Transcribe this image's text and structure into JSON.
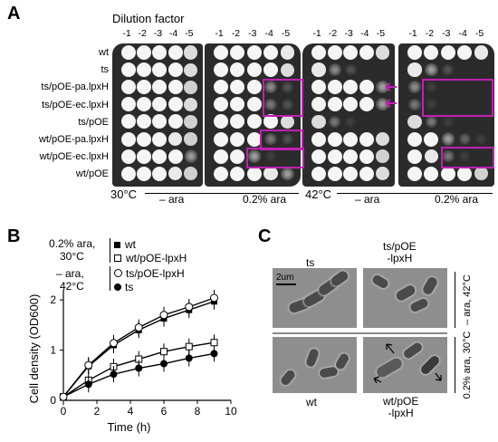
{
  "panels": {
    "a": "A",
    "b": "B",
    "c": "C"
  },
  "panelA": {
    "dilution_title": "Dilution factor",
    "dilutions": [
      "-1",
      "-2",
      "-3",
      "-4",
      "-5"
    ],
    "strains": [
      "wt",
      "ts",
      "ts/pOE-pa.lpxH",
      "ts/pOE-ec.lpxH",
      "ts/pOE",
      "wt/pOE-pa.lpxH",
      "wt/pOE-ec.lpxH",
      "wt/pOE"
    ],
    "temp_30": "30°C",
    "temp_42": "42°C",
    "cond_minus": "– ara",
    "cond_plus": "0.2% ara",
    "highlight_color": "#c21fb5",
    "spot_growth_note": "growth levels per spot (0-1) for each plate, rows x dilutions",
    "plates": [
      {
        "name": "30C minus ara",
        "growth": [
          [
            1,
            1,
            1,
            1,
            0.8
          ],
          [
            1,
            1,
            1,
            1,
            0.8
          ],
          [
            1,
            1,
            1,
            1,
            0.7
          ],
          [
            1,
            1,
            1,
            1,
            0.8
          ],
          [
            1,
            1,
            1,
            1,
            0.7
          ],
          [
            1,
            1,
            1,
            0.9,
            0.7
          ],
          [
            1,
            1,
            1,
            1,
            0.6
          ],
          [
            1,
            1,
            1,
            0.9,
            0.7
          ]
        ]
      },
      {
        "name": "30C 0.2% ara",
        "growth": [
          [
            1,
            1,
            1,
            1,
            0.9
          ],
          [
            1,
            1,
            1,
            1,
            0.8
          ],
          [
            1,
            1,
            1,
            0.5,
            0.2
          ],
          [
            1,
            1,
            1,
            0.4,
            0.2
          ],
          [
            1,
            1,
            1,
            1,
            0.8
          ],
          [
            1,
            1,
            1,
            0.4,
            0.2
          ],
          [
            1,
            1,
            0.6,
            0.1,
            0
          ],
          [
            1,
            1,
            1,
            0.9,
            0.6
          ]
        ]
      },
      {
        "name": "42C minus ara",
        "growth": [
          [
            1,
            1,
            1,
            1,
            0.8
          ],
          [
            0.9,
            0.5,
            0.2,
            0,
            0
          ],
          [
            1,
            1,
            1,
            1,
            0.6
          ],
          [
            1,
            1,
            1,
            1,
            0.6
          ],
          [
            0.8,
            0.4,
            0.1,
            0,
            0
          ],
          [
            1,
            1,
            1,
            1,
            0.8
          ],
          [
            1,
            1,
            1,
            1,
            0.7
          ],
          [
            1,
            1,
            1,
            1,
            0.8
          ]
        ]
      },
      {
        "name": "42C 0.2% ara",
        "growth": [
          [
            1,
            1,
            1,
            1,
            0.9
          ],
          [
            0.9,
            0.6,
            0.2,
            0,
            0
          ],
          [
            0.5,
            0.1,
            0,
            0,
            0
          ],
          [
            0.4,
            0.1,
            0,
            0,
            0
          ],
          [
            0.8,
            0.4,
            0.1,
            0,
            0
          ],
          [
            1,
            1,
            0.6,
            0.3,
            0.1
          ],
          [
            1,
            0.9,
            0.4,
            0.1,
            0
          ],
          [
            1,
            1,
            1,
            1,
            0.7
          ]
        ]
      }
    ]
  },
  "chart_data": {
    "type": "line",
    "xlabel": "Time (h)",
    "ylabel": "Cell density (OD600)",
    "xlim": [
      0,
      10
    ],
    "ylim": [
      0,
      2.2
    ],
    "xticks": [
      "0",
      "2",
      "4",
      "6",
      "8",
      "10"
    ],
    "yticks": [
      "0",
      "1",
      "2"
    ],
    "x": [
      0,
      1.5,
      3,
      4.5,
      6,
      7.5,
      9
    ],
    "series": [
      {
        "name": "wt",
        "marker": "filled-square",
        "condition": "0.2% ara, 30°C",
        "values": [
          0.07,
          0.68,
          1.1,
          1.4,
          1.63,
          1.8,
          1.97
        ]
      },
      {
        "name": "wt/pOE-lpxH",
        "marker": "open-square",
        "condition": "0.2% ara, 30°C",
        "values": [
          0.07,
          0.4,
          0.67,
          0.82,
          0.97,
          1.07,
          1.15
        ]
      },
      {
        "name": "ts/pOE-lpxH",
        "marker": "open-circle",
        "condition": "– ara, 42°C",
        "values": [
          0.07,
          0.7,
          1.14,
          1.45,
          1.7,
          1.86,
          2.04
        ]
      },
      {
        "name": "ts",
        "marker": "filled-circle",
        "condition": "– ara, 42°C",
        "values": [
          0.07,
          0.32,
          0.52,
          0.64,
          0.73,
          0.84,
          0.93
        ]
      }
    ],
    "legend": {
      "group1": [
        "0.2% ara,",
        "30°C"
      ],
      "group2": [
        "– ara,",
        "42°C"
      ]
    }
  },
  "panelC": {
    "col1": "ts",
    "col2": [
      "ts/pOE",
      "-lpxH"
    ],
    "col3": "wt",
    "col4": [
      "wt/pOE",
      "-lpxH"
    ],
    "scale_bar": "2um",
    "side_top": "– ara, 42°C",
    "side_bottom": "0.2% ara, 30°C"
  }
}
